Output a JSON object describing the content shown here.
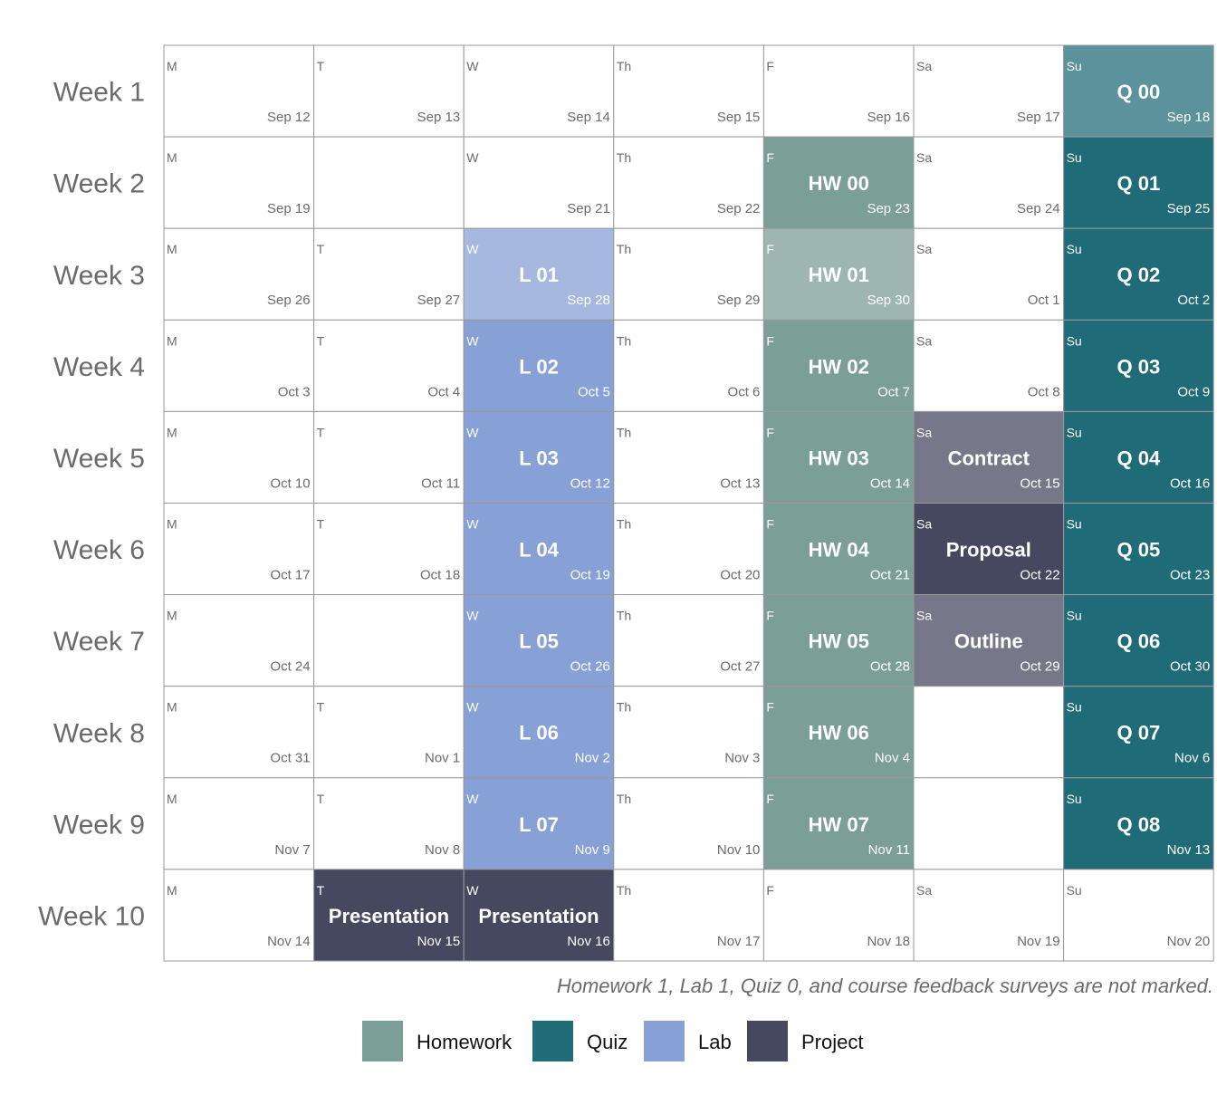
{
  "chart_data": {
    "type": "table",
    "title": "",
    "weeks": [
      {
        "label": "Week 1",
        "days": [
          {
            "day": "M",
            "date": "Sep 12"
          },
          {
            "day": "T",
            "date": "Sep 13"
          },
          {
            "day": "W",
            "date": "Sep 14"
          },
          {
            "day": "Th",
            "date": "Sep 15"
          },
          {
            "day": "F",
            "date": "Sep 16"
          },
          {
            "day": "Sa",
            "date": "Sep 17"
          },
          {
            "day": "Su",
            "date": "Sep 18",
            "event": "Q 00",
            "category": "Quiz",
            "unmarked": true
          }
        ]
      },
      {
        "label": "Week 2",
        "days": [
          {
            "day": "M",
            "date": "Sep 19"
          },
          {
            "day": "",
            "date": ""
          },
          {
            "day": "W",
            "date": "Sep 21"
          },
          {
            "day": "Th",
            "date": "Sep 22"
          },
          {
            "day": "F",
            "date": "Sep 23",
            "event": "HW 00",
            "category": "Homework"
          },
          {
            "day": "Sa",
            "date": "Sep 24"
          },
          {
            "day": "Su",
            "date": "Sep 25",
            "event": "Q 01",
            "category": "Quiz"
          }
        ]
      },
      {
        "label": "Week 3",
        "days": [
          {
            "day": "M",
            "date": "Sep 26"
          },
          {
            "day": "T",
            "date": "Sep 27"
          },
          {
            "day": "W",
            "date": "Sep 28",
            "event": "L 01",
            "category": "Lab",
            "unmarked": true
          },
          {
            "day": "Th",
            "date": "Sep 29"
          },
          {
            "day": "F",
            "date": "Sep 30",
            "event": "HW 01",
            "category": "Homework",
            "unmarked": true
          },
          {
            "day": "Sa",
            "date": "Oct 1"
          },
          {
            "day": "Su",
            "date": "Oct 2",
            "event": "Q 02",
            "category": "Quiz"
          }
        ]
      },
      {
        "label": "Week 4",
        "days": [
          {
            "day": "M",
            "date": "Oct 3"
          },
          {
            "day": "T",
            "date": "Oct 4"
          },
          {
            "day": "W",
            "date": "Oct 5",
            "event": "L 02",
            "category": "Lab"
          },
          {
            "day": "Th",
            "date": "Oct 6"
          },
          {
            "day": "F",
            "date": "Oct 7",
            "event": "HW 02",
            "category": "Homework"
          },
          {
            "day": "Sa",
            "date": "Oct 8"
          },
          {
            "day": "Su",
            "date": "Oct 9",
            "event": "Q 03",
            "category": "Quiz"
          }
        ]
      },
      {
        "label": "Week 5",
        "days": [
          {
            "day": "M",
            "date": "Oct 10"
          },
          {
            "day": "T",
            "date": "Oct 11"
          },
          {
            "day": "W",
            "date": "Oct 12",
            "event": "L 03",
            "category": "Lab"
          },
          {
            "day": "Th",
            "date": "Oct 13"
          },
          {
            "day": "F",
            "date": "Oct 14",
            "event": "HW 03",
            "category": "Homework"
          },
          {
            "day": "Sa",
            "date": "Oct 15",
            "event": "Contract",
            "category": "Project",
            "unmarked": true
          },
          {
            "day": "Su",
            "date": "Oct 16",
            "event": "Q 04",
            "category": "Quiz"
          }
        ]
      },
      {
        "label": "Week 6",
        "days": [
          {
            "day": "M",
            "date": "Oct 17"
          },
          {
            "day": "T",
            "date": "Oct 18"
          },
          {
            "day": "W",
            "date": "Oct 19",
            "event": "L 04",
            "category": "Lab"
          },
          {
            "day": "Th",
            "date": "Oct 20"
          },
          {
            "day": "F",
            "date": "Oct 21",
            "event": "HW 04",
            "category": "Homework"
          },
          {
            "day": "Sa",
            "date": "Oct 22",
            "event": "Proposal",
            "category": "Project"
          },
          {
            "day": "Su",
            "date": "Oct 23",
            "event": "Q 05",
            "category": "Quiz"
          }
        ]
      },
      {
        "label": "Week 7",
        "days": [
          {
            "day": "M",
            "date": "Oct 24"
          },
          {
            "day": "",
            "date": ""
          },
          {
            "day": "W",
            "date": "Oct 26",
            "event": "L 05",
            "category": "Lab"
          },
          {
            "day": "Th",
            "date": "Oct 27"
          },
          {
            "day": "F",
            "date": "Oct 28",
            "event": "HW 05",
            "category": "Homework"
          },
          {
            "day": "Sa",
            "date": "Oct 29",
            "event": "Outline",
            "category": "Project",
            "unmarked": true
          },
          {
            "day": "Su",
            "date": "Oct 30",
            "event": "Q 06",
            "category": "Quiz"
          }
        ]
      },
      {
        "label": "Week 8",
        "days": [
          {
            "day": "M",
            "date": "Oct 31"
          },
          {
            "day": "T",
            "date": "Nov 1"
          },
          {
            "day": "W",
            "date": "Nov 2",
            "event": "L 06",
            "category": "Lab"
          },
          {
            "day": "Th",
            "date": "Nov 3"
          },
          {
            "day": "F",
            "date": "Nov 4",
            "event": "HW 06",
            "category": "Homework"
          },
          {
            "day": "",
            "date": ""
          },
          {
            "day": "Su",
            "date": "Nov 6",
            "event": "Q 07",
            "category": "Quiz"
          }
        ]
      },
      {
        "label": "Week 9",
        "days": [
          {
            "day": "M",
            "date": "Nov 7"
          },
          {
            "day": "T",
            "date": "Nov 8"
          },
          {
            "day": "W",
            "date": "Nov 9",
            "event": "L 07",
            "category": "Lab"
          },
          {
            "day": "Th",
            "date": "Nov 10"
          },
          {
            "day": "F",
            "date": "Nov 11",
            "event": "HW 07",
            "category": "Homework"
          },
          {
            "day": "",
            "date": ""
          },
          {
            "day": "Su",
            "date": "Nov 13",
            "event": "Q 08",
            "category": "Quiz"
          }
        ]
      },
      {
        "label": "Week 10",
        "days": [
          {
            "day": "M",
            "date": "Nov 14"
          },
          {
            "day": "T",
            "date": "Nov 15",
            "event": "Presentation",
            "category": "Project"
          },
          {
            "day": "W",
            "date": "Nov 16",
            "event": "Presentation",
            "category": "Project"
          },
          {
            "day": "Th",
            "date": "Nov 17"
          },
          {
            "day": "F",
            "date": "Nov 18"
          },
          {
            "day": "Sa",
            "date": "Nov 19"
          },
          {
            "day": "Su",
            "date": "Nov 20"
          }
        ]
      }
    ],
    "legend": [
      {
        "name": "Homework",
        "color": "#7b9e96"
      },
      {
        "name": "Quiz",
        "color": "#1f6b78"
      },
      {
        "name": "Lab",
        "color": "#87a0d5"
      },
      {
        "name": "Project",
        "color": "#464860"
      }
    ],
    "legend_position": "bottom",
    "unmarked_colors": {
      "Homework": "#9db6b0",
      "Quiz": "#5b929c",
      "Lab": "#a6b7e0",
      "Project": "#767788"
    },
    "footnote": "Homework 1, Lab 1, Quiz 0, and course feedback surveys are not marked."
  }
}
